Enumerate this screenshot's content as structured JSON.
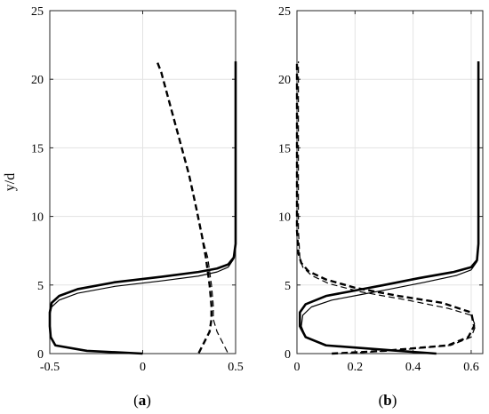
{
  "chart_data": [
    {
      "type": "line",
      "panel_label": "(a)",
      "panel_label_letter": "a",
      "ylabel": "y/d",
      "xlabel": "",
      "xlim": [
        -0.5,
        0.5
      ],
      "ylim": [
        0,
        25
      ],
      "xticks": [
        "-0.5",
        "0",
        "0.5"
      ],
      "xtick_values": [
        -0.5,
        0,
        0.5
      ],
      "yticks": [
        "0",
        "5",
        "10",
        "15",
        "20",
        "25"
      ],
      "ytick_values": [
        0,
        5,
        10,
        15,
        20,
        25
      ],
      "grid": true,
      "series": [
        {
          "style": "solid-thick",
          "points": [
            [
              0.0,
              0.0
            ],
            [
              -0.3,
              0.2
            ],
            [
              -0.47,
              0.6
            ],
            [
              -0.495,
              1.2
            ],
            [
              -0.5,
              2.0
            ],
            [
              -0.5,
              3.0
            ],
            [
              -0.49,
              3.7
            ],
            [
              -0.45,
              4.2
            ],
            [
              -0.35,
              4.7
            ],
            [
              -0.15,
              5.2
            ],
            [
              0.1,
              5.6
            ],
            [
              0.3,
              5.95
            ],
            [
              0.4,
              6.2
            ],
            [
              0.46,
              6.5
            ],
            [
              0.49,
              7.0
            ],
            [
              0.5,
              8.0
            ],
            [
              0.5,
              10.0
            ],
            [
              0.5,
              15.0
            ],
            [
              0.5,
              21.3
            ]
          ]
        },
        {
          "style": "solid-thin",
          "points": [
            [
              0.0,
              0.0
            ],
            [
              -0.3,
              0.2
            ],
            [
              -0.47,
              0.6
            ],
            [
              -0.495,
              1.2
            ],
            [
              -0.5,
              2.0
            ],
            [
              -0.5,
              2.8
            ],
            [
              -0.49,
              3.4
            ],
            [
              -0.45,
              3.9
            ],
            [
              -0.35,
              4.4
            ],
            [
              -0.15,
              4.9
            ],
            [
              0.1,
              5.3
            ],
            [
              0.3,
              5.65
            ],
            [
              0.4,
              5.95
            ],
            [
              0.46,
              6.3
            ],
            [
              0.49,
              6.9
            ],
            [
              0.5,
              8.0
            ],
            [
              0.5,
              10.0
            ],
            [
              0.5,
              15.0
            ],
            [
              0.5,
              21.3
            ]
          ]
        },
        {
          "style": "dashed-thick",
          "points": [
            [
              0.08,
              21.2
            ],
            [
              0.1,
              20.5
            ],
            [
              0.15,
              18.0
            ],
            [
              0.2,
              15.5
            ],
            [
              0.25,
              13.0
            ],
            [
              0.29,
              10.5
            ],
            [
              0.32,
              8.5
            ],
            [
              0.34,
              7.0
            ],
            [
              0.36,
              5.0
            ],
            [
              0.37,
              3.5
            ],
            [
              0.37,
              2.5
            ],
            [
              0.36,
              1.6
            ],
            [
              0.33,
              0.8
            ],
            [
              0.3,
              0.0
            ]
          ]
        },
        {
          "style": "dashed-thin",
          "points": [
            [
              0.08,
              21.2
            ],
            [
              0.1,
              20.5
            ],
            [
              0.15,
              18.0
            ],
            [
              0.2,
              15.5
            ],
            [
              0.25,
              13.0
            ],
            [
              0.29,
              10.5
            ],
            [
              0.32,
              8.5
            ],
            [
              0.35,
              7.0
            ],
            [
              0.37,
              5.0
            ],
            [
              0.38,
              3.5
            ],
            [
              0.38,
              2.5
            ],
            [
              0.4,
              1.6
            ],
            [
              0.43,
              0.8
            ],
            [
              0.46,
              0.0
            ]
          ]
        }
      ]
    },
    {
      "type": "line",
      "panel_label": "(b)",
      "panel_label_letter": "b",
      "ylabel": "",
      "xlabel": "",
      "xlim": [
        0,
        0.64
      ],
      "ylim": [
        0,
        25
      ],
      "xticks": [
        "0",
        "0.2",
        "0.4",
        "0.6"
      ],
      "xtick_values": [
        0,
        0.2,
        0.4,
        0.6
      ],
      "yticks": [
        "0",
        "5",
        "10",
        "15",
        "20",
        "25"
      ],
      "ytick_values": [
        0,
        5,
        10,
        15,
        20,
        25
      ],
      "grid": true,
      "series": [
        {
          "style": "solid-thick",
          "points": [
            [
              0.48,
              0.0
            ],
            [
              0.35,
              0.2
            ],
            [
              0.1,
              0.6
            ],
            [
              0.03,
              1.2
            ],
            [
              0.01,
              2.0
            ],
            [
              0.01,
              3.0
            ],
            [
              0.03,
              3.6
            ],
            [
              0.1,
              4.2
            ],
            [
              0.2,
              4.6
            ],
            [
              0.3,
              5.0
            ],
            [
              0.42,
              5.5
            ],
            [
              0.54,
              5.95
            ],
            [
              0.6,
              6.3
            ],
            [
              0.62,
              6.8
            ],
            [
              0.625,
              8.0
            ],
            [
              0.625,
              10.0
            ],
            [
              0.625,
              15.0
            ],
            [
              0.625,
              21.3
            ]
          ]
        },
        {
          "style": "solid-thin",
          "points": [
            [
              0.48,
              0.0
            ],
            [
              0.35,
              0.2
            ],
            [
              0.1,
              0.6
            ],
            [
              0.03,
              1.2
            ],
            [
              0.015,
              2.0
            ],
            [
              0.02,
              2.8
            ],
            [
              0.05,
              3.4
            ],
            [
              0.12,
              3.9
            ],
            [
              0.22,
              4.3
            ],
            [
              0.32,
              4.7
            ],
            [
              0.44,
              5.2
            ],
            [
              0.55,
              5.7
            ],
            [
              0.6,
              6.1
            ],
            [
              0.62,
              6.7
            ],
            [
              0.625,
              8.0
            ],
            [
              0.625,
              10.0
            ],
            [
              0.625,
              15.0
            ],
            [
              0.625,
              21.3
            ]
          ]
        },
        {
          "style": "dashed-thick",
          "points": [
            [
              0.12,
              0.0
            ],
            [
              0.3,
              0.2
            ],
            [
              0.52,
              0.6
            ],
            [
              0.59,
              1.2
            ],
            [
              0.61,
              2.0
            ],
            [
              0.6,
              3.0
            ],
            [
              0.5,
              3.7
            ],
            [
              0.35,
              4.2
            ],
            [
              0.2,
              4.8
            ],
            [
              0.1,
              5.4
            ],
            [
              0.04,
              6.0
            ],
            [
              0.015,
              6.6
            ],
            [
              0.005,
              7.3
            ],
            [
              0.0,
              9.0
            ],
            [
              0.0,
              12.0
            ],
            [
              0.0,
              16.0
            ],
            [
              0.0,
              21.3
            ]
          ]
        },
        {
          "style": "dashed-thin",
          "points": [
            [
              0.15,
              0.0
            ],
            [
              0.32,
              0.2
            ],
            [
              0.53,
              0.6
            ],
            [
              0.6,
              1.2
            ],
            [
              0.615,
              2.0
            ],
            [
              0.6,
              2.8
            ],
            [
              0.52,
              3.3
            ],
            [
              0.38,
              3.9
            ],
            [
              0.22,
              4.5
            ],
            [
              0.11,
              5.1
            ],
            [
              0.05,
              5.7
            ],
            [
              0.02,
              6.3
            ],
            [
              0.01,
              7.0
            ],
            [
              0.005,
              9.0
            ],
            [
              0.005,
              12.0
            ],
            [
              0.005,
              16.0
            ],
            [
              0.005,
              21.3
            ]
          ]
        }
      ]
    }
  ]
}
